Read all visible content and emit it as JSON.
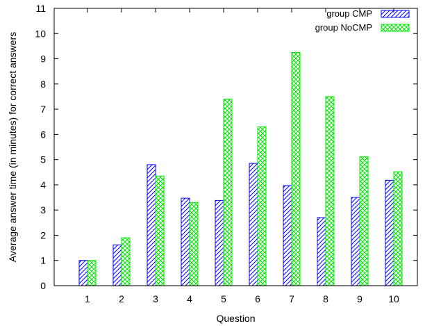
{
  "chart_data": {
    "type": "bar",
    "xlabel": "Question",
    "ylabel": "Average answer time (in minutes) for correct answers",
    "categories": [
      "1",
      "2",
      "3",
      "4",
      "5",
      "6",
      "7",
      "8",
      "9",
      "10"
    ],
    "series": [
      {
        "name": "group CMP",
        "color": "#0000ff",
        "pattern": "diagonal-hatch",
        "values": [
          1.0,
          1.62,
          4.8,
          3.47,
          3.38,
          4.85,
          3.97,
          2.7,
          3.5,
          4.18
        ]
      },
      {
        "name": "group NoCMP",
        "color": "#00e600",
        "pattern": "cross-hatch",
        "values": [
          1.0,
          1.9,
          4.35,
          3.3,
          7.4,
          6.3,
          9.25,
          7.5,
          5.12,
          4.52
        ]
      }
    ],
    "ylim": [
      0,
      11
    ],
    "yticks": [
      0,
      1,
      2,
      3,
      4,
      5,
      6,
      7,
      8,
      9,
      10,
      11
    ],
    "grid": false,
    "legend": "top-right"
  }
}
